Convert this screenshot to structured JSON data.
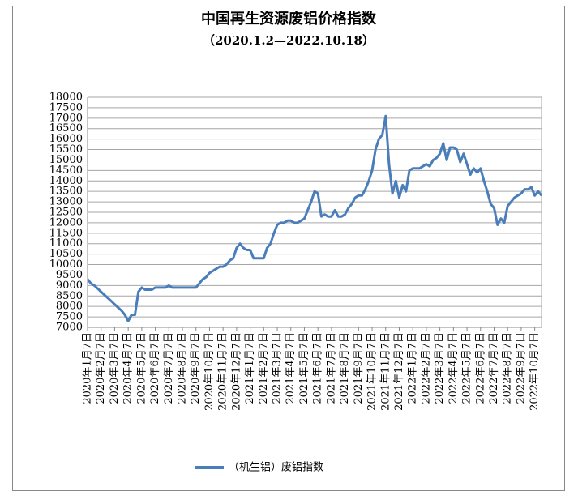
{
  "chart_data": {
    "type": "line",
    "title": "中国再生资源废铝价格指数",
    "subtitle": "（2020.1.2—2022.10.18）",
    "categories": [
      "2020年1月7日",
      null,
      null,
      null,
      "2020年2月7日",
      null,
      null,
      null,
      "2020年3月7日",
      null,
      null,
      null,
      "2020年4月7日",
      null,
      null,
      null,
      "2020年5月7日",
      null,
      null,
      null,
      "2020年6月7日",
      null,
      null,
      null,
      "2020年7月7日",
      null,
      null,
      null,
      "2020年8月7日",
      null,
      null,
      null,
      "2020年9月7日",
      null,
      null,
      null,
      "2020年10月7日",
      null,
      null,
      null,
      "2020年11月7日",
      null,
      null,
      null,
      "2020年12月7日",
      null,
      null,
      null,
      "2021年1月7日",
      null,
      null,
      null,
      "2021年2月7日",
      null,
      null,
      null,
      "2021年3月7日",
      null,
      null,
      null,
      "2021年4月7日",
      null,
      null,
      null,
      "2021年5月7日",
      null,
      null,
      null,
      "2021年6月7日",
      null,
      null,
      null,
      "2021年7月7日",
      null,
      null,
      null,
      "2021年8月7日",
      null,
      null,
      null,
      "2021年9月7日",
      null,
      null,
      null,
      "2021年10月7日",
      null,
      null,
      null,
      "2021年11月7日",
      null,
      null,
      null,
      "2021年12月7日",
      null,
      null,
      null,
      "2022年1月7日",
      null,
      null,
      null,
      "2022年2月7日",
      null,
      null,
      null,
      "2022年3月7日",
      null,
      null,
      null,
      "2022年4月7日",
      null,
      null,
      null,
      "2022年5月7日",
      null,
      null,
      null,
      "2022年6月7日",
      null,
      null,
      null,
      "2022年7月7日",
      null,
      null,
      null,
      "2022年8月7日",
      null,
      null,
      null,
      "2022年9月7日",
      null,
      null,
      null,
      "2022年10月7日",
      null,
      null
    ],
    "series": [
      {
        "name": "（机生铝）废铝指数",
        "color": "#4a7ebb",
        "values": [
          9300,
          9100,
          9000,
          8850,
          8700,
          8550,
          8400,
          8250,
          8100,
          7950,
          7800,
          7600,
          7300,
          7600,
          7600,
          8700,
          8900,
          8800,
          8800,
          8800,
          8900,
          8900,
          8900,
          8900,
          9000,
          8900,
          8900,
          8900,
          8900,
          8900,
          8900,
          8900,
          8900,
          9100,
          9300,
          9400,
          9600,
          9700,
          9800,
          9900,
          9900,
          10000,
          10200,
          10300,
          10800,
          11000,
          10800,
          10700,
          10700,
          10300,
          10300,
          10300,
          10300,
          10800,
          11000,
          11500,
          11900,
          12000,
          12000,
          12100,
          12100,
          12000,
          12000,
          12100,
          12200,
          12600,
          13000,
          13500,
          13400,
          12300,
          12400,
          12300,
          12300,
          12600,
          12300,
          12300,
          12400,
          12700,
          12900,
          13200,
          13300,
          13300,
          13600,
          14000,
          14500,
          15500,
          16000,
          16200,
          17100,
          14800,
          13400,
          14000,
          13200,
          13800,
          13500,
          14500,
          14600,
          14600,
          14600,
          14700,
          14800,
          14700,
          15000,
          15100,
          15300,
          15800,
          15000,
          15600,
          15600,
          15500,
          14900,
          15300,
          14800,
          14300,
          14600,
          14400,
          14600,
          14000,
          13500,
          12900,
          12700,
          11900,
          12200,
          12000,
          12800,
          13000,
          13200,
          13300,
          13400,
          13600,
          13600,
          13700,
          13300,
          13500,
          13300
        ]
      }
    ],
    "ylim": [
      7000,
      18000
    ],
    "yticks": [
      7000,
      7500,
      8000,
      8500,
      9000,
      9500,
      10000,
      10500,
      11000,
      11500,
      12000,
      12500,
      13000,
      13500,
      14000,
      14500,
      15000,
      15500,
      16000,
      16500,
      17000,
      17500,
      18000
    ],
    "grid": true
  }
}
